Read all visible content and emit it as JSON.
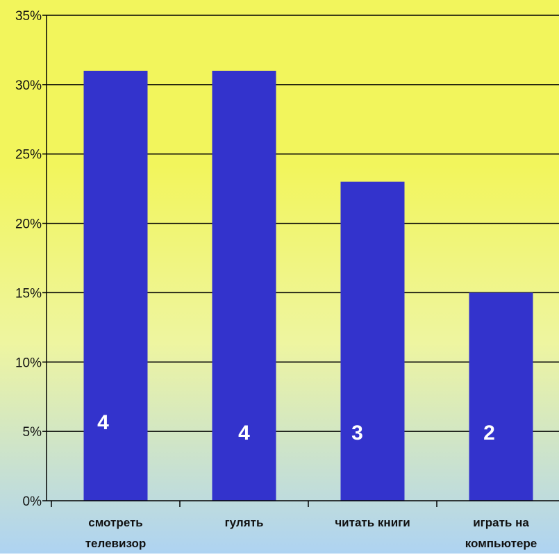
{
  "chart_data": {
    "type": "bar",
    "categories": [
      [
        "смотреть",
        "телевизор"
      ],
      [
        "гулять"
      ],
      [
        "читать книги"
      ],
      [
        "играть на",
        "компьютере"
      ]
    ],
    "values": [
      31,
      31,
      23,
      15
    ],
    "data_labels": [
      "4",
      "4",
      "3",
      "2"
    ],
    "ylim": [
      0,
      35
    ],
    "y_ticks": [
      0,
      5,
      10,
      15,
      20,
      25,
      30,
      35
    ],
    "y_tick_labels": [
      "0%",
      "5%",
      "10%",
      "15%",
      "20%",
      "25%",
      "30%",
      "35%"
    ],
    "grid": true,
    "legend": "none"
  },
  "colors": {
    "bar": "#3333cc",
    "bg_top": "#f2f55c",
    "bg_mid": "#eef5a0",
    "bg_bottom": "#aed3f2",
    "grid": "#000000"
  }
}
